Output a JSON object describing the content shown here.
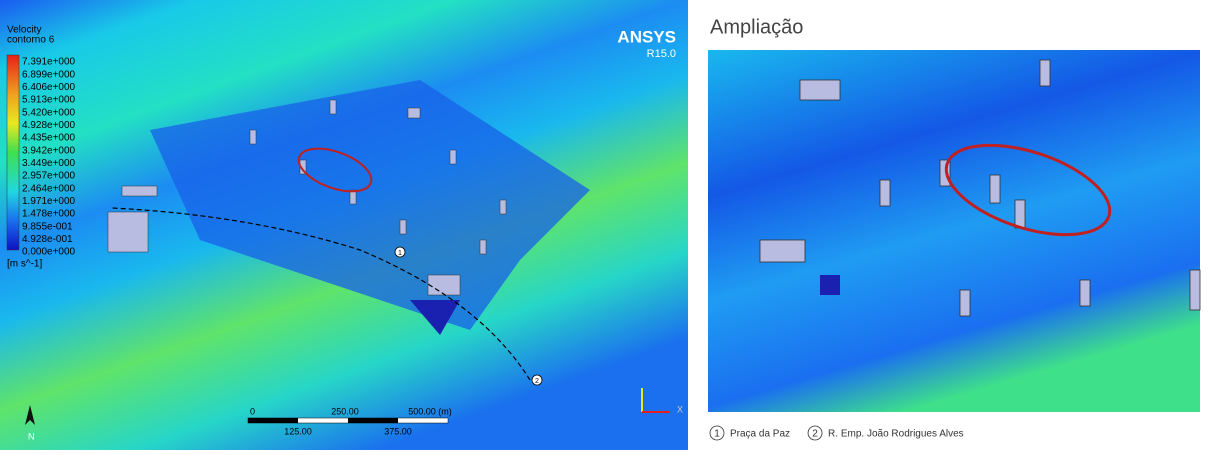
{
  "left_panel": {
    "title": "Velocity",
    "subtitle": "contorno 6",
    "legend_labels": [
      "7.391e+000",
      "6.899e+000",
      "6.406e+000",
      "5.913e+000",
      "5.420e+000",
      "4.928e+000",
      "4.435e+000",
      "3.942e+000",
      "3.449e+000",
      "2.957e+000",
      "2.464e+000",
      "1.971e+000",
      "1.478e+000",
      "9.855e-001",
      "4.928e-001",
      "0.000e+000"
    ],
    "unit": "[m s^-1]",
    "brand": "ANSYS",
    "version": "R15.0",
    "scale_top": [
      "0",
      "250.00",
      "500.00 (m)"
    ],
    "scale_bottom": [
      "125.00",
      "375.00"
    ],
    "marker_1": "1",
    "marker_2": "2",
    "north": "N",
    "axis_x": "X"
  },
  "right_panel": {
    "title": "Ampliação"
  },
  "footer": {
    "items": [
      {
        "number": "1",
        "label": "Praça da Paz"
      },
      {
        "number": "2",
        "label": "R. Emp. João Rodrigues Alves"
      }
    ]
  }
}
